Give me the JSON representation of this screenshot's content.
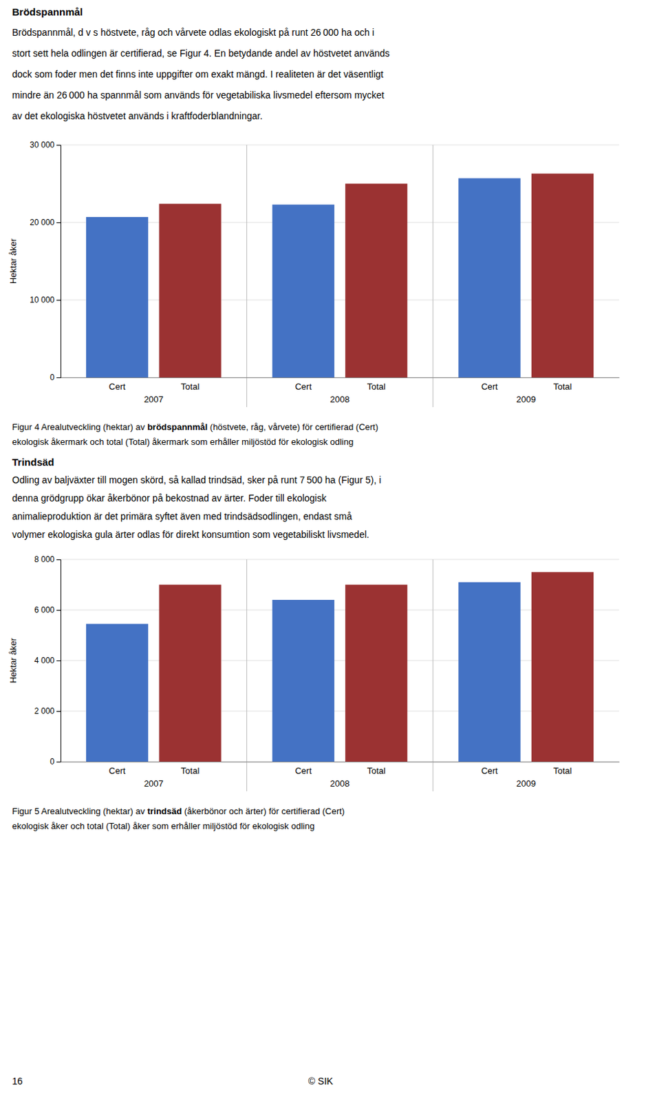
{
  "texts": {
    "header": {
      "title": "Brödspannmål",
      "lines": [
        "Brödspannmål, d v s höstvete, råg och vårvete odlas ekologiskt på runt 26 000 ha och i",
        "stort sett hela odlingen är certifierad, se Figur 4. En betydande andel av höstvetet används",
        "dock som foder men det finns inte uppgifter om exakt mängd. I realiteten är det väsentligt",
        "mindre än 26 000 ha spannmål som används för vegetabiliska livsmedel eftersom mycket",
        "av det ekologiska höstvetet används i kraftfoderblandningar."
      ]
    },
    "caption_1": {
      "pre": "Figur 4 Arealutveckling (hektar) av ",
      "bold": "brödspannmål",
      "post": " (höstvete, råg, vårvete) för certifierad (Cert)",
      "line2": "ekologisk åkermark och total (Total) åkermark som erhåller miljöstöd för ekologisk odling"
    },
    "trindsad": {
      "title": "Trindsäd",
      "lines": [
        "Odling av baljväxter till mogen skörd, så kallad trindsäd, sker på runt 7 500 ha (Figur 5), i",
        "denna grödgrupp ökar åkerbönor på bekostnad av ärter. Foder till ekologisk",
        "animalieproduktion är det primära syftet även med trindsädsodlingen, endast små",
        "volymer ekologiska gula ärter odlas för direkt konsumtion som vegetabiliskt livsmedel."
      ]
    },
    "caption_2": {
      "pre": "Figur 5 Arealutveckling (hektar) av ",
      "bold": "trindsäd",
      "post": " (åkerbönor och ärter) för certifierad (Cert)",
      "line2": "ekologisk åker och total (Total) åker som erhåller miljöstöd för ekologisk odling"
    },
    "footer": {
      "left": "16",
      "right": "© SIK"
    }
  },
  "chart_data": [
    {
      "type": "bar",
      "ylabel": "Hektar åker",
      "categories": [
        "2007",
        "2008",
        "2009"
      ],
      "series": [
        {
          "name": "Cert",
          "color": "#4472C4",
          "values": [
            20700,
            22300,
            25700
          ]
        },
        {
          "name": "Total",
          "color": "#9B3232",
          "values": [
            22400,
            25000,
            26300
          ]
        }
      ],
      "ylim": [
        0,
        30000
      ],
      "yticks": [
        0,
        {
          "value": 10000,
          "label": "10 000"
        },
        {
          "value": 20000,
          "label": "20 000"
        },
        {
          "value": 30000,
          "label": "30 000"
        }
      ],
      "grid": true
    },
    {
      "type": "bar",
      "ylabel": "Hektar åker",
      "categories": [
        "2007",
        "2008",
        "2009"
      ],
      "series": [
        {
          "name": "Cert",
          "color": "#4472C4",
          "values": [
            5450,
            6400,
            7100
          ]
        },
        {
          "name": "Total",
          "color": "#9B3232",
          "values": [
            7000,
            7000,
            7500
          ]
        }
      ],
      "ylim": [
        0,
        8000
      ],
      "yticks": [
        0,
        {
          "value": 2000,
          "label": "2 000"
        },
        {
          "value": 4000,
          "label": "4 000"
        },
        {
          "value": 6000,
          "label": "6 000"
        },
        {
          "value": 8000,
          "label": "8 000"
        }
      ],
      "grid": true
    }
  ]
}
